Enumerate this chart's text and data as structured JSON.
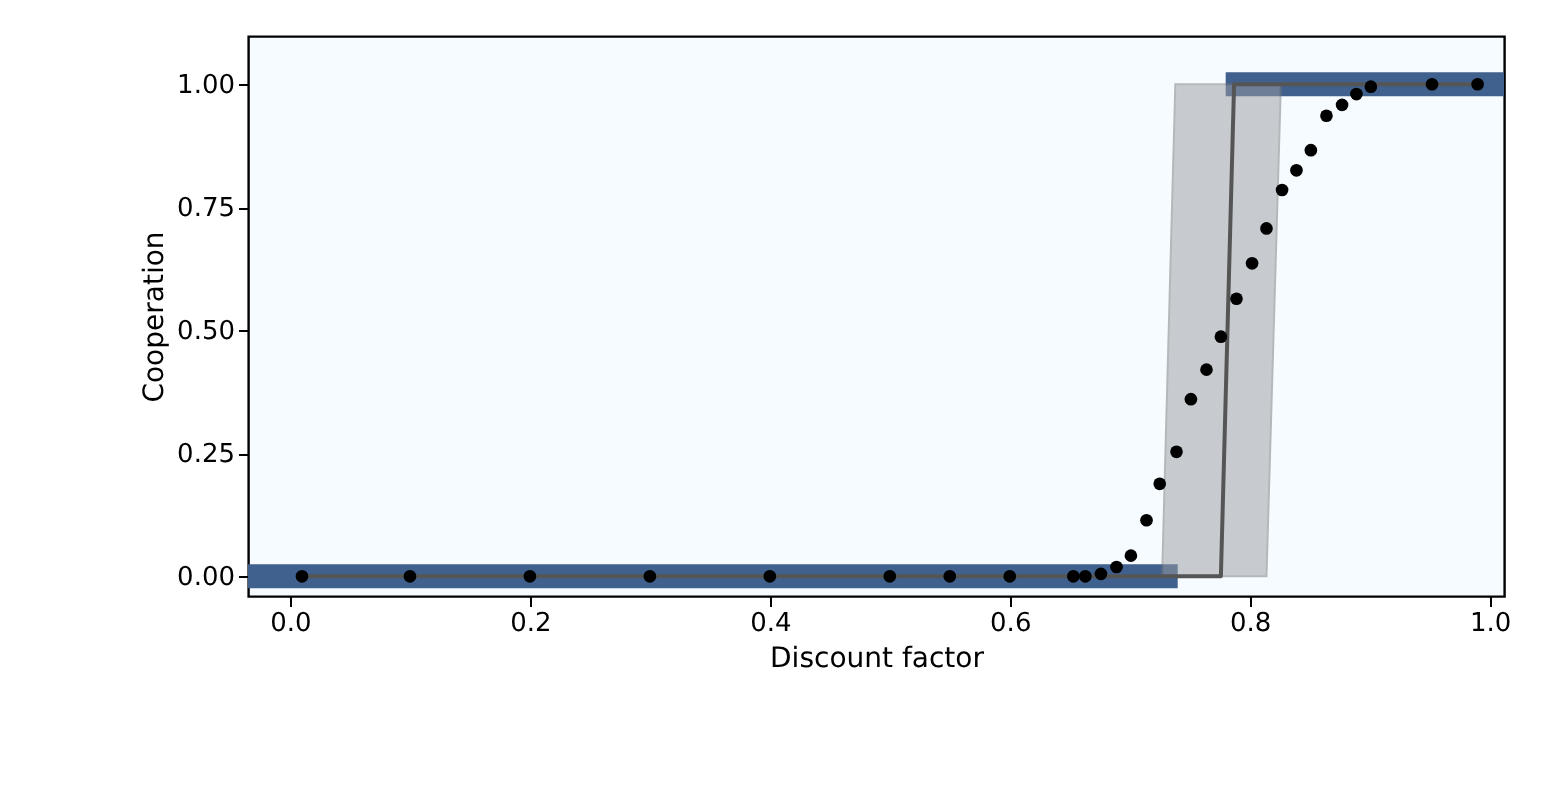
{
  "chart_data": {
    "type": "scatter",
    "xlabel": "Discount factor",
    "ylabel": "Cooperation",
    "xlim": [
      -0.035,
      1.012
    ],
    "ylim": [
      -0.04,
      1.098
    ],
    "xticks": [
      {
        "value": 0,
        "label": "0.0"
      },
      {
        "value": 0.2,
        "label": "0.2"
      },
      {
        "value": 0.4,
        "label": "0.4"
      },
      {
        "value": 0.6,
        "label": "0.6"
      },
      {
        "value": 0.8,
        "label": "0.8"
      },
      {
        "value": 1,
        "label": "1.0"
      }
    ],
    "yticks": [
      {
        "value": 0,
        "label": "0.00"
      },
      {
        "value": 0.25,
        "label": "0.25"
      },
      {
        "value": 0.5,
        "label": "0.50"
      },
      {
        "value": 0.75,
        "label": "0.75"
      },
      {
        "value": 1,
        "label": "1.00"
      }
    ],
    "grid": false,
    "series": [
      {
        "type": "line",
        "color": "#40608d",
        "x": [
          -0.035,
          0.74
        ],
        "values": [
          0,
          0
        ]
      },
      {
        "type": "line",
        "color": "#40608d",
        "x": [
          0.78,
          1.012
        ],
        "values": [
          1,
          1
        ]
      },
      {
        "type": "line",
        "color": "#555555",
        "x": [
          0.01,
          0.1,
          0.2,
          0.3,
          0.4,
          0.5,
          0.55,
          0.6,
          0.65,
          0.69,
          0.727,
          0.738,
          0.776,
          0.787,
          0.814,
          0.826,
          0.9,
          0.95,
          0.99
        ],
        "values": [
          0,
          0,
          0,
          0,
          0,
          0,
          0,
          0,
          0,
          0,
          0,
          0,
          0,
          1,
          1,
          1,
          1,
          1,
          1
        ],
        "lower": [
          null,
          null,
          null,
          null,
          null,
          null,
          null,
          null,
          null,
          null,
          0,
          0,
          0,
          0,
          0,
          1,
          null,
          null,
          null
        ],
        "upper": [
          null,
          null,
          null,
          null,
          null,
          null,
          null,
          null,
          null,
          null,
          0,
          1,
          1,
          1,
          1,
          1,
          null,
          null,
          null
        ]
      },
      {
        "color": "#000000",
        "x": [
          0.01,
          0.1,
          0.2,
          0.3,
          0.4,
          0.5,
          0.55,
          0.6,
          0.653,
          0.663,
          0.676,
          0.689,
          0.701,
          0.714,
          0.725,
          0.739,
          0.751,
          0.764,
          0.776,
          0.789,
          0.802,
          0.814,
          0.827,
          0.839,
          0.851,
          0.864,
          0.877,
          0.889,
          0.901,
          0.952,
          0.99
        ],
        "values": [
          0,
          0,
          0,
          0,
          0,
          0,
          0,
          0,
          0,
          0,
          0.005,
          0.019,
          0.042,
          0.114,
          0.188,
          0.253,
          0.36,
          0.42,
          0.487,
          0.564,
          0.636,
          0.707,
          0.785,
          0.825,
          0.866,
          0.936,
          0.958,
          0.98,
          0.995,
          1,
          1
        ]
      }
    ]
  }
}
